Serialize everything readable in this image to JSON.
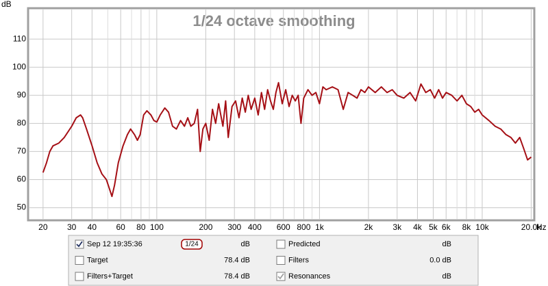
{
  "chart_data": {
    "type": "line",
    "title": "1/24 octave smoothing",
    "y_label": "dB",
    "x_label": "Hz",
    "x_scale": "log",
    "grid": true,
    "line_color": "#a50f15",
    "xlim": [
      16.5,
      20500
    ],
    "ylim": [
      46,
      120.5
    ],
    "yticks": [
      50,
      60,
      70,
      80,
      90,
      100,
      110
    ],
    "xticks": [
      20,
      30,
      40,
      60,
      80,
      100,
      200,
      300,
      400,
      600,
      800,
      {
        "value": 1000,
        "label": "1k"
      },
      {
        "value": 2000,
        "label": "2k"
      },
      {
        "value": 3000,
        "label": "3k"
      },
      {
        "value": 4000,
        "label": "4k"
      },
      {
        "value": 5000,
        "label": "5k"
      },
      {
        "value": 6000,
        "label": "6k"
      },
      {
        "value": 8000,
        "label": "8k"
      },
      {
        "value": 10000,
        "label": "10k"
      },
      {
        "value": 20000,
        "label": "20.0k"
      }
    ],
    "x_minor_ticks": [
      50,
      70,
      90,
      500,
      700,
      900,
      7000,
      9000
    ],
    "x": [
      20,
      21,
      22,
      23,
      25,
      27,
      30,
      32,
      34,
      35,
      37,
      40,
      43,
      46,
      49,
      51,
      53,
      55,
      58,
      62,
      66,
      69,
      73,
      76,
      79,
      83,
      87,
      92,
      96,
      100,
      105,
      112,
      118,
      125,
      132,
      140,
      148,
      155,
      162,
      170,
      178,
      185,
      192,
      200,
      210,
      220,
      230,
      240,
      255,
      265,
      275,
      290,
      305,
      320,
      335,
      350,
      365,
      380,
      400,
      420,
      440,
      460,
      480,
      500,
      520,
      540,
      560,
      590,
      620,
      650,
      680,
      710,
      740,
      770,
      800,
      850,
      900,
      950,
      1000,
      1050,
      1100,
      1200,
      1300,
      1400,
      1500,
      1600,
      1700,
      1800,
      1900,
      2000,
      2200,
      2400,
      2600,
      2800,
      3000,
      3300,
      3600,
      3900,
      4200,
      4500,
      4800,
      5100,
      5400,
      5700,
      6000,
      6500,
      7000,
      7500,
      8000,
      8500,
      9000,
      9500,
      10000,
      11000,
      12000,
      13000,
      14000,
      15000,
      16000,
      17000,
      18000,
      19000,
      20000
    ],
    "series": [
      {
        "name": "Sep 12 19:35:36",
        "values": [
          62.5,
          66,
          70,
          72,
          73,
          75,
          79,
          82,
          83,
          82,
          78,
          72,
          66,
          62,
          60,
          57,
          54,
          58,
          66,
          72,
          76,
          78,
          76,
          74,
          76,
          83,
          84.5,
          83,
          81,
          80.5,
          83,
          85.5,
          84,
          79,
          78,
          81,
          79,
          82,
          79,
          80,
          85,
          70,
          78,
          80,
          74,
          85,
          80,
          87,
          79,
          88,
          75,
          86,
          88,
          82,
          89,
          84,
          90,
          85,
          89,
          83,
          91,
          85,
          92,
          88,
          85,
          91,
          94.5,
          87,
          92,
          86,
          90,
          88,
          90,
          80,
          89,
          92,
          90,
          91,
          87,
          93,
          92,
          93,
          92,
          85,
          91,
          90,
          89,
          92,
          91,
          93,
          91,
          93,
          91,
          92,
          90,
          89,
          91,
          88,
          94,
          91,
          92,
          89,
          92,
          89,
          91,
          90,
          88,
          90,
          87,
          86,
          84,
          85,
          83,
          81,
          79,
          78,
          76,
          75,
          73,
          75,
          71,
          67,
          68
        ]
      }
    ]
  },
  "panel": {
    "items": [
      {
        "label": "Sep 12 19:35:36",
        "smoothing": "1/24",
        "value": "dB",
        "checked": true,
        "color": "#a00000",
        "value_color": "#c00000"
      },
      {
        "label": "Target",
        "value": "78.4 dB",
        "checked": false,
        "color": "#1f3f8f",
        "value_color": "#1f3f8f"
      },
      {
        "label": "Filters+Target",
        "value": "78.4 dB",
        "checked": false,
        "color": "#008080",
        "value_color": "#1f3f8f"
      },
      {
        "label": "Predicted",
        "value": "dB",
        "checked": false,
        "color": "#c00000",
        "value_color": "#c00000"
      },
      {
        "label": "Filters",
        "value": "0.0 dB",
        "checked": false,
        "color": "#008b8b",
        "value_color": "#00a0a0"
      },
      {
        "label": "Resonances",
        "value": "dB",
        "checked": true,
        "color": "#909090",
        "value_color": "#909090"
      }
    ]
  }
}
